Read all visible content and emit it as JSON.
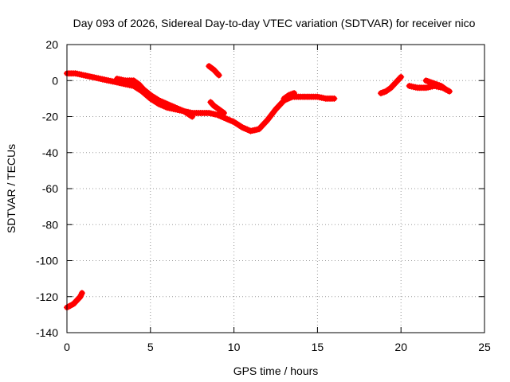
{
  "chart_data": {
    "type": "scatter",
    "title": "Day 093 of 2026, Sidereal Day-to-day VTEC variation (SDTVAR) for receiver nico",
    "xlabel": "GPS time / hours",
    "ylabel": "SDTVAR / TECUs",
    "xlim": [
      0,
      25
    ],
    "ylim": [
      -140,
      20
    ],
    "xticks": [
      0,
      5,
      10,
      15,
      20,
      25
    ],
    "xtick_labels": [
      "0",
      "5",
      "10",
      "15",
      "20",
      "25"
    ],
    "yticks": [
      20,
      0,
      -20,
      -40,
      -60,
      -80,
      -100,
      -120,
      -140
    ],
    "ytick_labels": [
      "20",
      "0",
      "-20",
      "-40",
      "-60",
      "-80",
      "-100",
      "-120",
      "-140"
    ],
    "grid": true,
    "series_color": "#ff0000",
    "series": [
      {
        "name": "main-arc",
        "x": [
          0.0,
          0.5,
          1.0,
          1.5,
          2.0,
          2.5,
          3.0,
          3.5,
          4.0,
          4.5,
          5.0,
          5.5,
          6.0,
          6.5,
          7.0,
          7.5,
          8.0,
          8.5,
          9.0,
          9.5,
          10.0,
          10.5,
          11.0,
          11.5,
          12.0,
          12.5,
          13.0,
          13.5,
          14.0,
          14.5,
          15.0,
          15.5,
          16.0
        ],
        "y": [
          4,
          4,
          3,
          2,
          1,
          0,
          -1,
          -2,
          -3,
          -6,
          -10,
          -13,
          -15,
          -16,
          -17,
          -18,
          -18,
          -18,
          -19,
          -21,
          -23,
          -26,
          -28,
          -27,
          -22,
          -16,
          -11,
          -9,
          -9,
          -9,
          -9,
          -10,
          -10
        ]
      },
      {
        "name": "upper-band",
        "x": [
          3.0,
          3.5,
          4.0,
          4.3,
          4.6,
          5.0,
          5.5,
          6.0,
          6.5,
          7.0,
          7.5
        ],
        "y": [
          1,
          0,
          0,
          -2,
          -5,
          -8,
          -11,
          -13,
          -15,
          -17,
          -20
        ]
      },
      {
        "name": "segment-8.5h",
        "x": [
          8.5,
          8.8,
          9.1
        ],
        "y": [
          8,
          6,
          3
        ]
      },
      {
        "name": "segment-8.8h",
        "x": [
          8.6,
          8.8,
          9.1,
          9.4
        ],
        "y": [
          -12,
          -14,
          -16,
          -18
        ]
      },
      {
        "name": "segment-13h",
        "x": [
          13.0,
          13.3,
          13.6
        ],
        "y": [
          -10,
          -8,
          -7
        ]
      },
      {
        "name": "segment-19h",
        "x": [
          18.8,
          19.1,
          19.4,
          19.7,
          20.0
        ],
        "y": [
          -7,
          -6,
          -4,
          -1,
          2
        ]
      },
      {
        "name": "segment-20.5h",
        "x": [
          20.5,
          21.0,
          21.5,
          22.0,
          22.5,
          22.9
        ],
        "y": [
          -3,
          -4,
          -4,
          -3,
          -4,
          -6
        ]
      },
      {
        "name": "segment-21.5h",
        "x": [
          21.5,
          21.8,
          22.1,
          22.4,
          22.7
        ],
        "y": [
          0,
          -1,
          -2,
          -3,
          -5
        ]
      },
      {
        "name": "segment-0h-low",
        "x": [
          0.0,
          0.2,
          0.4,
          0.6,
          0.8,
          0.9
        ],
        "y": [
          -126,
          -125,
          -124,
          -122,
          -120,
          -118
        ]
      }
    ]
  }
}
